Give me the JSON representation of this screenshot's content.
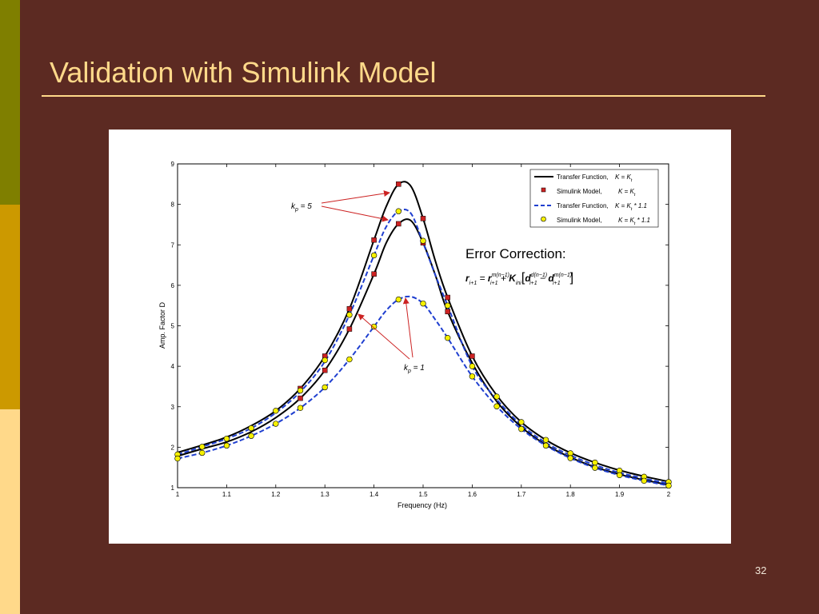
{
  "slide": {
    "title": "Validation with Simulink Model",
    "page_number": "32",
    "accent_colors": [
      "#7f7f00",
      "#cc9900",
      "#ffd98a"
    ],
    "background": "#5c2a22",
    "title_color": "#ffd98a"
  },
  "annotations": {
    "kp5_label": "k",
    "kp5_sub": "p",
    "kp5_rest": " = 5",
    "kp1_label": "k",
    "kp1_sub": "p",
    "kp1_rest": " = 1",
    "error_correction": "Error Correction:"
  },
  "chart_data": {
    "type": "line",
    "xlabel": "Frequency (Hz)",
    "ylabel": "Amp. Factor  D",
    "xlim": [
      1,
      2
    ],
    "ylim": [
      1,
      9
    ],
    "x_ticks": [
      "1",
      "1.1",
      "1.2",
      "1.3",
      "1.4",
      "1.5",
      "1.6",
      "1.7",
      "1.8",
      "1.9",
      "2"
    ],
    "y_ticks": [
      "1",
      "2",
      "3",
      "4",
      "5",
      "6",
      "7",
      "8",
      "9"
    ],
    "grid": false,
    "legend_position": "top-right",
    "legend": [
      {
        "text": "Transfer Function,",
        "formula": "K = K",
        "sub": "t",
        "suffix": "",
        "style": "solid-black"
      },
      {
        "text": "Simulink Model,",
        "formula": "K = K",
        "sub": "t",
        "suffix": "",
        "style": "red-square"
      },
      {
        "text": "Transfer Function,",
        "formula": "K = K",
        "sub": "t",
        "suffix": " * 1.1",
        "style": "dashed-blue"
      },
      {
        "text": "Simulink Model,",
        "formula": "K = K",
        "sub": "t",
        "suffix": " * 1.1",
        "style": "yellow-circle"
      }
    ],
    "colors": {
      "transfer": "#000000",
      "transfer_scaled": "#1f3fd0",
      "sim_square": "#cc2222",
      "sim_circle": "#f5f000"
    },
    "series": [
      {
        "style": "solid-black",
        "x": [
          1.0,
          1.05,
          1.1,
          1.15,
          1.2,
          1.25,
          1.3,
          1.35,
          1.4,
          1.425,
          1.45,
          1.475,
          1.5,
          1.525,
          1.55,
          1.6,
          1.65,
          1.7,
          1.75,
          1.8,
          1.85,
          1.9,
          1.95,
          2.0
        ],
        "y": [
          1.87,
          2.05,
          2.25,
          2.53,
          2.9,
          3.45,
          4.25,
          5.42,
          7.12,
          7.95,
          8.5,
          8.45,
          7.65,
          6.6,
          5.7,
          4.25,
          3.28,
          2.62,
          2.18,
          1.86,
          1.62,
          1.43,
          1.28,
          1.15
        ]
      },
      {
        "style": "solid-black",
        "x": [
          1.0,
          1.05,
          1.1,
          1.15,
          1.2,
          1.25,
          1.3,
          1.35,
          1.4,
          1.425,
          1.45,
          1.475,
          1.5,
          1.525,
          1.55,
          1.6,
          1.65,
          1.7,
          1.75,
          1.8,
          1.85,
          1.9,
          1.95,
          2.0
        ],
        "y": [
          1.78,
          1.96,
          2.13,
          2.38,
          2.73,
          3.21,
          3.9,
          4.92,
          6.28,
          7.05,
          7.52,
          7.6,
          7.05,
          6.25,
          5.35,
          4.08,
          3.13,
          2.5,
          2.06,
          1.75,
          1.51,
          1.33,
          1.19,
          1.07
        ]
      },
      {
        "style": "dashed-blue",
        "x": [
          1.0,
          1.05,
          1.1,
          1.15,
          1.2,
          1.25,
          1.3,
          1.35,
          1.4,
          1.425,
          1.45,
          1.475,
          1.5,
          1.525,
          1.55,
          1.6,
          1.65,
          1.7,
          1.75,
          1.8,
          1.85,
          1.9,
          1.95,
          2.0
        ],
        "y": [
          1.82,
          2.01,
          2.21,
          2.47,
          2.85,
          3.37,
          4.12,
          5.27,
          6.74,
          7.45,
          7.83,
          7.78,
          7.05,
          6.25,
          5.5,
          4.0,
          3.18,
          2.55,
          2.11,
          1.8,
          1.56,
          1.37,
          1.23,
          1.1
        ]
      },
      {
        "style": "dashed-blue",
        "x": [
          1.0,
          1.05,
          1.1,
          1.15,
          1.2,
          1.25,
          1.3,
          1.35,
          1.4,
          1.425,
          1.45,
          1.475,
          1.5,
          1.525,
          1.55,
          1.6,
          1.65,
          1.7,
          1.75,
          1.8,
          1.85,
          1.9,
          1.95,
          2.0
        ],
        "y": [
          1.72,
          1.86,
          2.04,
          2.28,
          2.58,
          2.97,
          3.48,
          4.17,
          4.98,
          5.38,
          5.65,
          5.72,
          5.55,
          5.15,
          4.7,
          3.75,
          3.01,
          2.45,
          2.04,
          1.73,
          1.49,
          1.31,
          1.17,
          1.05
        ]
      },
      {
        "style": "red-square",
        "x": [
          1.25,
          1.3,
          1.35,
          1.4,
          1.45,
          1.5,
          1.55,
          1.25,
          1.3,
          1.35,
          1.4,
          1.45,
          1.5,
          1.55,
          1.6
        ],
        "y": [
          3.45,
          4.25,
          5.42,
          7.12,
          8.5,
          7.65,
          5.7,
          3.21,
          3.9,
          4.92,
          6.28,
          7.52,
          7.05,
          5.35,
          4.25
        ]
      },
      {
        "style": "yellow-circle",
        "x": [
          1.0,
          1.05,
          1.1,
          1.15,
          1.2,
          1.25,
          1.3,
          1.35,
          1.4,
          1.45,
          1.5,
          1.55,
          1.6,
          1.65,
          1.7,
          1.75,
          1.8,
          1.85,
          1.9,
          1.95,
          2.0,
          1.0,
          1.05,
          1.1,
          1.15,
          1.2,
          1.25,
          1.3,
          1.35,
          1.4,
          1.45,
          1.5,
          1.55,
          1.6,
          1.65,
          1.7,
          1.75,
          1.8,
          1.85,
          1.9,
          1.95,
          2.0
        ],
        "y": [
          1.82,
          2.01,
          2.21,
          2.47,
          2.9,
          3.4,
          4.15,
          5.27,
          6.74,
          7.83,
          7.1,
          5.5,
          4.0,
          3.25,
          2.62,
          2.18,
          1.85,
          1.62,
          1.42,
          1.27,
          1.14,
          1.72,
          1.86,
          2.04,
          2.28,
          2.58,
          2.97,
          3.48,
          4.17,
          4.98,
          5.65,
          5.55,
          4.7,
          3.75,
          3.01,
          2.45,
          2.04,
          1.73,
          1.49,
          1.31,
          1.17,
          1.05
        ]
      }
    ]
  }
}
